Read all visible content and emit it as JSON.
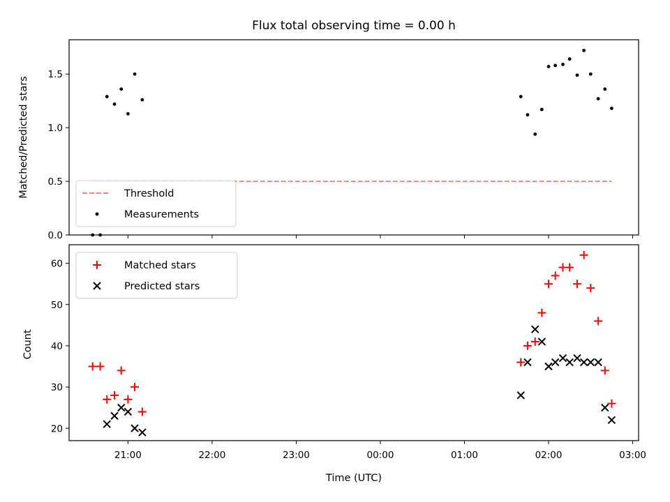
{
  "title": "Flux total observing time = 0.00 h",
  "xlabel": "Time (UTC)",
  "chart_data": [
    {
      "type": "scatter",
      "ylabel": "Matched/Predicted stars",
      "ylim": [
        0,
        1.82
      ],
      "yticks": [
        0.0,
        0.5,
        1.0,
        1.5
      ],
      "xrange_hours": [
        20.3,
        27.07
      ],
      "legend_position": "lower-left",
      "threshold": {
        "name": "Threshold",
        "value": 0.5,
        "x_start": 20.58,
        "x_end": 26.75,
        "color": "#ff7f7f"
      },
      "series": [
        {
          "name": "Measurements",
          "color": "#000000",
          "points": [
            {
              "x": 20.58,
              "y": 0.0
            },
            {
              "x": 20.67,
              "y": 0.0
            },
            {
              "x": 20.75,
              "y": 1.29
            },
            {
              "x": 20.84,
              "y": 1.22
            },
            {
              "x": 20.92,
              "y": 1.36
            },
            {
              "x": 21.0,
              "y": 1.13
            },
            {
              "x": 21.08,
              "y": 1.5
            },
            {
              "x": 21.17,
              "y": 1.26
            },
            {
              "x": 25.67,
              "y": 1.29
            },
            {
              "x": 25.75,
              "y": 1.12
            },
            {
              "x": 25.84,
              "y": 0.94
            },
            {
              "x": 25.92,
              "y": 1.17
            },
            {
              "x": 26.0,
              "y": 1.57
            },
            {
              "x": 26.08,
              "y": 1.58
            },
            {
              "x": 26.17,
              "y": 1.59
            },
            {
              "x": 26.25,
              "y": 1.64
            },
            {
              "x": 26.34,
              "y": 1.49
            },
            {
              "x": 26.42,
              "y": 1.72
            },
            {
              "x": 26.5,
              "y": 1.5
            },
            {
              "x": 26.59,
              "y": 1.27
            },
            {
              "x": 26.67,
              "y": 1.36
            },
            {
              "x": 26.75,
              "y": 1.18
            }
          ]
        }
      ]
    },
    {
      "type": "scatter",
      "ylabel": "Count",
      "ylim": [
        17,
        64.5
      ],
      "yticks": [
        20,
        30,
        40,
        50,
        60
      ],
      "xrange_hours": [
        20.3,
        27.07
      ],
      "xticks": [
        {
          "x": 21,
          "label": "21:00"
        },
        {
          "x": 22,
          "label": "22:00"
        },
        {
          "x": 23,
          "label": "23:00"
        },
        {
          "x": 24,
          "label": "00:00"
        },
        {
          "x": 25,
          "label": "01:00"
        },
        {
          "x": 26,
          "label": "02:00"
        },
        {
          "x": 27,
          "label": "03:00"
        }
      ],
      "legend_position": "upper-left",
      "series": [
        {
          "name": "Matched stars",
          "marker": "plus",
          "color": "#ff0000",
          "points": [
            {
              "x": 20.58,
              "y": 35
            },
            {
              "x": 20.67,
              "y": 35
            },
            {
              "x": 20.75,
              "y": 27
            },
            {
              "x": 20.84,
              "y": 28
            },
            {
              "x": 20.92,
              "y": 34
            },
            {
              "x": 21.0,
              "y": 27
            },
            {
              "x": 21.08,
              "y": 30
            },
            {
              "x": 21.17,
              "y": 24
            },
            {
              "x": 25.67,
              "y": 36
            },
            {
              "x": 25.75,
              "y": 40
            },
            {
              "x": 25.84,
              "y": 41
            },
            {
              "x": 25.92,
              "y": 48
            },
            {
              "x": 26.0,
              "y": 55
            },
            {
              "x": 26.08,
              "y": 57
            },
            {
              "x": 26.17,
              "y": 59
            },
            {
              "x": 26.25,
              "y": 59
            },
            {
              "x": 26.34,
              "y": 55
            },
            {
              "x": 26.42,
              "y": 62
            },
            {
              "x": 26.5,
              "y": 54
            },
            {
              "x": 26.59,
              "y": 46
            },
            {
              "x": 26.67,
              "y": 34
            },
            {
              "x": 26.75,
              "y": 26
            }
          ]
        },
        {
          "name": "Predicted stars",
          "marker": "x",
          "color": "#000000",
          "points": [
            {
              "x": 20.75,
              "y": 21
            },
            {
              "x": 20.84,
              "y": 23
            },
            {
              "x": 20.92,
              "y": 25
            },
            {
              "x": 21.0,
              "y": 24
            },
            {
              "x": 21.08,
              "y": 20
            },
            {
              "x": 21.17,
              "y": 19
            },
            {
              "x": 25.67,
              "y": 28
            },
            {
              "x": 25.75,
              "y": 36
            },
            {
              "x": 25.84,
              "y": 44
            },
            {
              "x": 25.92,
              "y": 41
            },
            {
              "x": 26.0,
              "y": 35
            },
            {
              "x": 26.08,
              "y": 36
            },
            {
              "x": 26.17,
              "y": 37
            },
            {
              "x": 26.25,
              "y": 36
            },
            {
              "x": 26.34,
              "y": 37
            },
            {
              "x": 26.42,
              "y": 36
            },
            {
              "x": 26.5,
              "y": 36
            },
            {
              "x": 26.59,
              "y": 36
            },
            {
              "x": 26.67,
              "y": 25
            },
            {
              "x": 26.75,
              "y": 22
            }
          ]
        }
      ]
    }
  ]
}
